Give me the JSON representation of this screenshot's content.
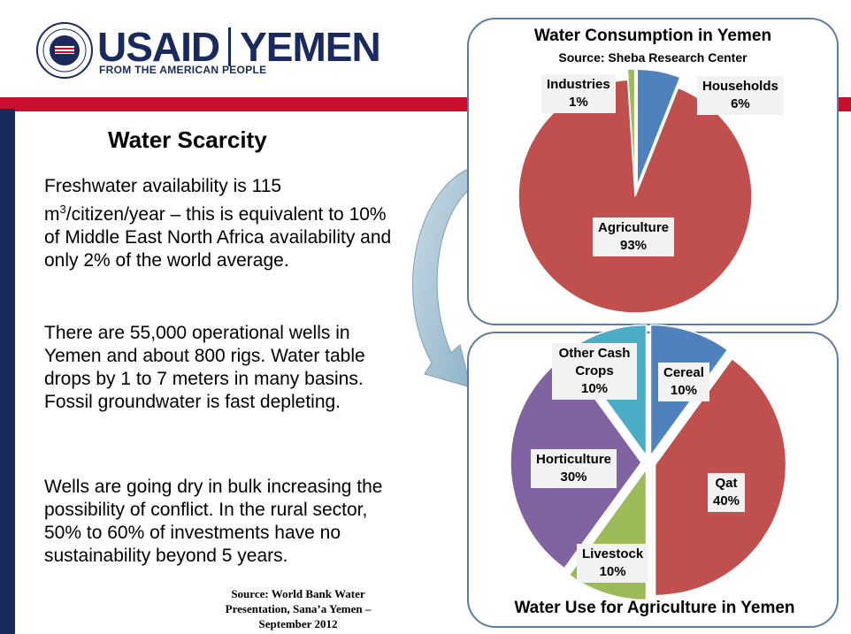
{
  "header": {
    "brand": "USAID",
    "country": "YEMEN",
    "tagline": "FROM THE AMERICAN PEOPLE"
  },
  "slide": {
    "title": "Water Scarcity",
    "para1_a": "Freshwater availability is 115 m",
    "para1_sup": "3",
    "para1_b": "/citizen/year – this is equivalent to 10% of Middle East North Africa availability and only 2% of the world average.",
    "para2": "There are 55,000 operational wells in Yemen and about 800 rigs.  Water table drops by 1 to 7 meters in many basins.  Fossil groundwater is fast depleting.",
    "para3": "Wells are going dry in bulk increasing the possibility of conflict. In the rural sector, 50% to 60% of investments have no sustainability beyond 5 years.",
    "source": "Source: World Bank Water Presentation, Sana’a Yemen – September 2012"
  },
  "chart_data": [
    {
      "type": "pie",
      "title": "Water Consumption in Yemen",
      "subtitle": "Source: Sheba Research Center",
      "slices": [
        {
          "label": "Households",
          "value": 6,
          "display": "6%",
          "color": "#4f81bd"
        },
        {
          "label": "Agriculture",
          "value": 93,
          "display": "93%",
          "color": "#c0504d"
        },
        {
          "label": "Industries",
          "value": 1,
          "display": "1%",
          "color": "#9bbb59"
        }
      ]
    },
    {
      "type": "pie",
      "title": "Water Use for  Agriculture in Yemen",
      "slices": [
        {
          "label": "Cereal",
          "value": 10,
          "display": "10%",
          "color": "#4f81bd"
        },
        {
          "label": "Qat",
          "value": 40,
          "display": "40%",
          "color": "#c0504d"
        },
        {
          "label": "Livestock",
          "value": 10,
          "display": "10%",
          "color": "#9bbb59"
        },
        {
          "label": "Horticulture",
          "value": 30,
          "display": "30%",
          "color": "#8064a2"
        },
        {
          "label": "Other Cash Crops",
          "value": 10,
          "display": "10%",
          "color": "#4bacc6"
        }
      ]
    }
  ]
}
